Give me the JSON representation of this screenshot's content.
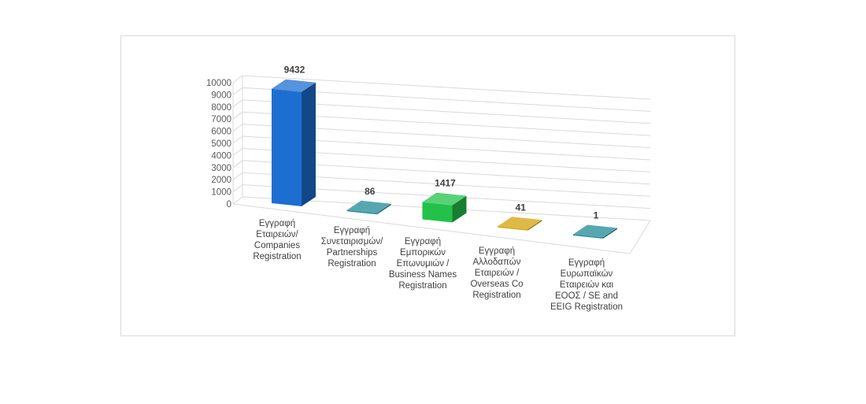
{
  "chart_data": {
    "type": "bar",
    "categories": [
      [
        "Εγγραφή",
        "Εταιρειών/",
        "Companies",
        "Registration"
      ],
      [
        "Εγγραφή",
        "Συνεταιρισμών/",
        "Partnerships",
        "Registration"
      ],
      [
        "Εγγραφή",
        "Εμπορικών",
        "Επωνυμιών /",
        "Business Names",
        "Registration"
      ],
      [
        "Εγγραφή",
        "Αλλοδαπών",
        "Εταιρειών /",
        "Overseas Co",
        "Registration"
      ],
      [
        "Εγγραφή",
        "Ευρωπαϊκών",
        "Εταιρειών και",
        "ΕΟΟΣ / SE and",
        "EEIG Registration"
      ]
    ],
    "values": [
      9432,
      86,
      1417,
      41,
      1
    ],
    "data_labels": [
      "9432",
      "86",
      "1417",
      "41",
      "1"
    ],
    "colors": [
      "#1c6fd1",
      "#1f8a96",
      "#22c24a",
      "#d4a20a",
      "#1f8a96"
    ],
    "ylim": [
      0,
      10000
    ],
    "yticks": [
      "0",
      "1000",
      "2000",
      "3000",
      "4000",
      "5000",
      "6000",
      "7000",
      "8000",
      "9000",
      "10000"
    ],
    "grid": true,
    "style": "3d-column"
  }
}
